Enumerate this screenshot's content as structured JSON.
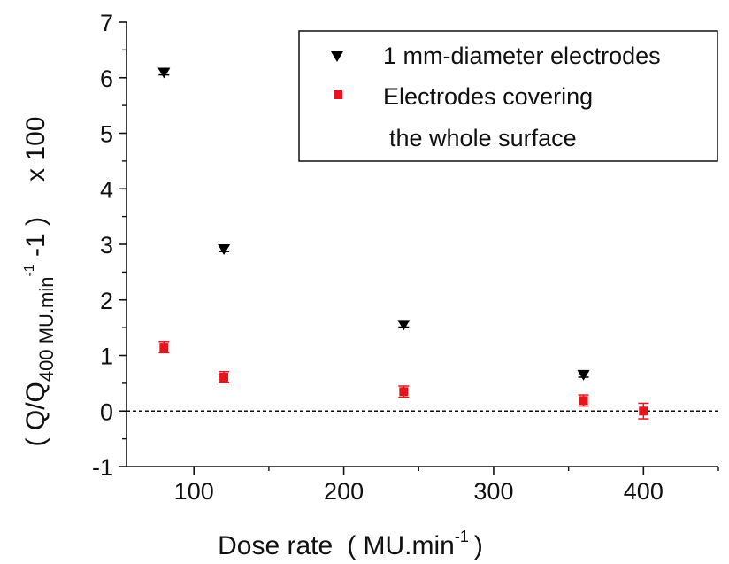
{
  "chart_data": {
    "type": "scatter",
    "xlabel": {
      "main": "Dose rate",
      "unit_prefix": "( MU.min",
      "unit_sup": "-1",
      "unit_suffix": ")"
    },
    "ylabel": {
      "open": "( Q/Q",
      "sub": "400",
      "mid": " MU.min",
      "sup": "-1",
      "close": " -1 )",
      "multiplier": "x 100"
    },
    "xlim": [
      55,
      450
    ],
    "ylim": [
      -1,
      7
    ],
    "xticks": [
      100,
      200,
      300,
      400
    ],
    "yticks": [
      -1,
      0,
      1,
      2,
      3,
      4,
      5,
      6,
      7
    ],
    "reference_line": {
      "y": 0,
      "style": "dashed"
    },
    "grid": false,
    "legend_position": "top-right",
    "legend": [
      {
        "lines": [
          "1 mm-diameter electrodes"
        ],
        "marker": "triangle-down",
        "color": "#000000"
      },
      {
        "lines": [
          "Electrodes covering",
          "the whole surface"
        ],
        "marker": "square",
        "color": "#e8141c"
      }
    ],
    "series": [
      {
        "name": "1 mm-diameter electrodes",
        "marker": "triangle-down",
        "color": "#000000",
        "x": [
          80,
          120,
          240,
          360
        ],
        "y": [
          6.1,
          2.92,
          1.56,
          0.66
        ],
        "err": [
          0.05,
          0.05,
          0.05,
          0.05
        ]
      },
      {
        "name": "Electrodes covering the whole surface",
        "marker": "square",
        "color": "#e8141c",
        "x": [
          80,
          120,
          240,
          360,
          400
        ],
        "y": [
          1.15,
          0.61,
          0.35,
          0.19,
          0.0
        ],
        "err": [
          0.1,
          0.1,
          0.1,
          0.1,
          0.14
        ]
      }
    ]
  }
}
